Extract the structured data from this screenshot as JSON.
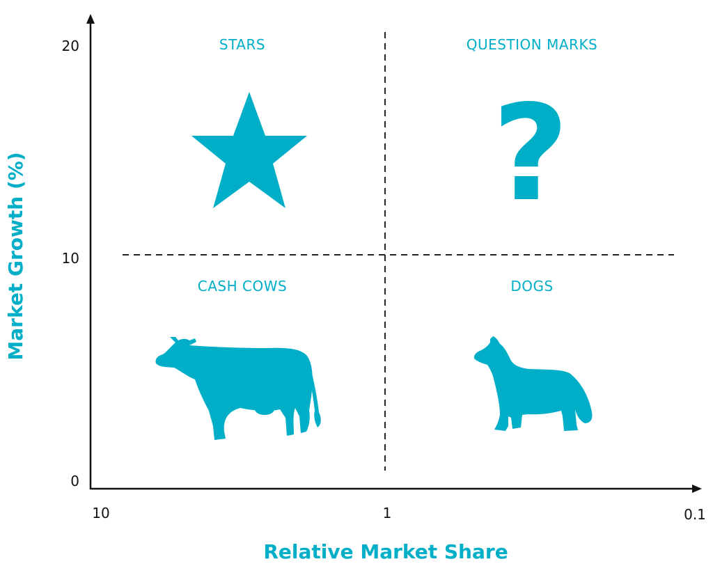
{
  "colors": {
    "accent": "#00aec8",
    "axis": "#111111"
  },
  "x_axis": {
    "title": "Relative Market Share",
    "ticks": [
      "10",
      "1",
      "0.1"
    ]
  },
  "y_axis": {
    "title": "Market Growth (%)",
    "ticks": [
      "20",
      "10",
      "0"
    ]
  },
  "quadrants": {
    "top_left": {
      "label": "STARS",
      "icon": "star-icon"
    },
    "top_right": {
      "label": "QUESTION MARKS",
      "icon": "question-mark-icon",
      "glyph": "?"
    },
    "bottom_left": {
      "label": "CASH COWS",
      "icon": "cow-icon"
    },
    "bottom_right": {
      "label": "DOGS",
      "icon": "dog-icon"
    }
  }
}
